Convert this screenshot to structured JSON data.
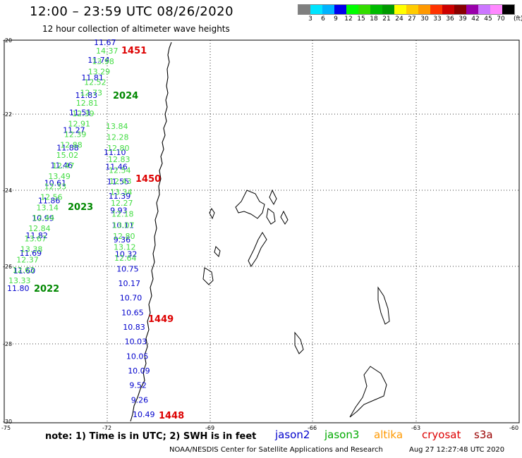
{
  "header": {
    "title": "12:00 – 23:59 UTC 08/26/2020",
    "subtitle": "12 hour collection of altimeter wave heights"
  },
  "color_scale": {
    "colors": [
      "#7f7f7f",
      "#00e5ff",
      "#00b3ff",
      "#0000ee",
      "#00ff00",
      "#33dd00",
      "#00bb00",
      "#009900",
      "#ffff00",
      "#ffcc00",
      "#ff9900",
      "#ff3300",
      "#cc0000",
      "#880000",
      "#9900aa",
      "#cc77ff",
      "#ff88ff",
      "#000000"
    ],
    "labels": [
      "3",
      "6",
      "9",
      "12",
      "15",
      "18",
      "21",
      "24",
      "27",
      "30",
      "33",
      "36",
      "39",
      "42",
      "45",
      "70"
    ],
    "unit": "(ft)"
  },
  "axes": {
    "lat_labels": [
      "-20",
      "-22",
      "-24",
      "-26",
      "-28",
      "-30"
    ],
    "lon_labels": [
      "-75",
      "-72",
      "-69",
      "-66",
      "-63",
      "-60"
    ]
  },
  "footer": {
    "note": "note: 1) Time is in UTC; 2) SWH is in feet",
    "satellites": [
      {
        "name": "jason2",
        "color": "#0000cc"
      },
      {
        "name": "jason3",
        "color": "#00aa00"
      },
      {
        "name": "altika",
        "color": "#ff9900"
      },
      {
        "name": "cryosat",
        "color": "#dd0000"
      },
      {
        "name": "s3a",
        "color": "#990000"
      }
    ],
    "credit": "NOAA/NESDIS Center for Satellite Applications and Research",
    "timestamp": "Aug 27 12:27:48 UTC 2020"
  },
  "tracks": {
    "blue": [
      "11.67",
      "11.74",
      "11.81",
      "11.83",
      "11.51",
      "11.27",
      "11.88",
      "11.46",
      "10.61",
      "11.86",
      "10.99",
      "11.82",
      "11.69",
      "11.60",
      "11.80"
    ],
    "green": [
      "14.37",
      "13.98",
      "13.29",
      "12.52",
      "12.73",
      "12.81",
      "12.39",
      "12.91",
      "12.39",
      "12.88",
      "15.02",
      "12.47",
      "13.49",
      "12.33",
      "12.56",
      "13.14",
      "12.44",
      "12.84",
      "13.67",
      "13.38",
      "12.37",
      "12.63",
      "13.33"
    ],
    "east_blue": [
      "11.10",
      "11.46",
      "11.55",
      "11.39",
      "9.93",
      "10.11",
      "9.36",
      "10.32",
      "10.75",
      "10.17",
      "10.70",
      "10.65",
      "10.83",
      "10.03",
      "10.05",
      "10.09",
      "9.52",
      "9.26",
      "10.49"
    ],
    "east_green": [
      "13.84",
      "12.28",
      "12.80",
      "12.83",
      "12.54",
      "12.43",
      "13.34",
      "12.27",
      "12.18",
      "13.07",
      "12.80",
      "13.12",
      "12.64"
    ]
  },
  "time_labels": [
    {
      "text": "1451",
      "color": "#dd0000"
    },
    {
      "text": "2024",
      "color": "#008800"
    },
    {
      "text": "1450",
      "color": "#dd0000"
    },
    {
      "text": "2023",
      "color": "#008800"
    },
    {
      "text": "2022",
      "color": "#008800"
    },
    {
      "text": "1449",
      "color": "#dd0000"
    },
    {
      "text": "1448",
      "color": "#dd0000"
    }
  ]
}
